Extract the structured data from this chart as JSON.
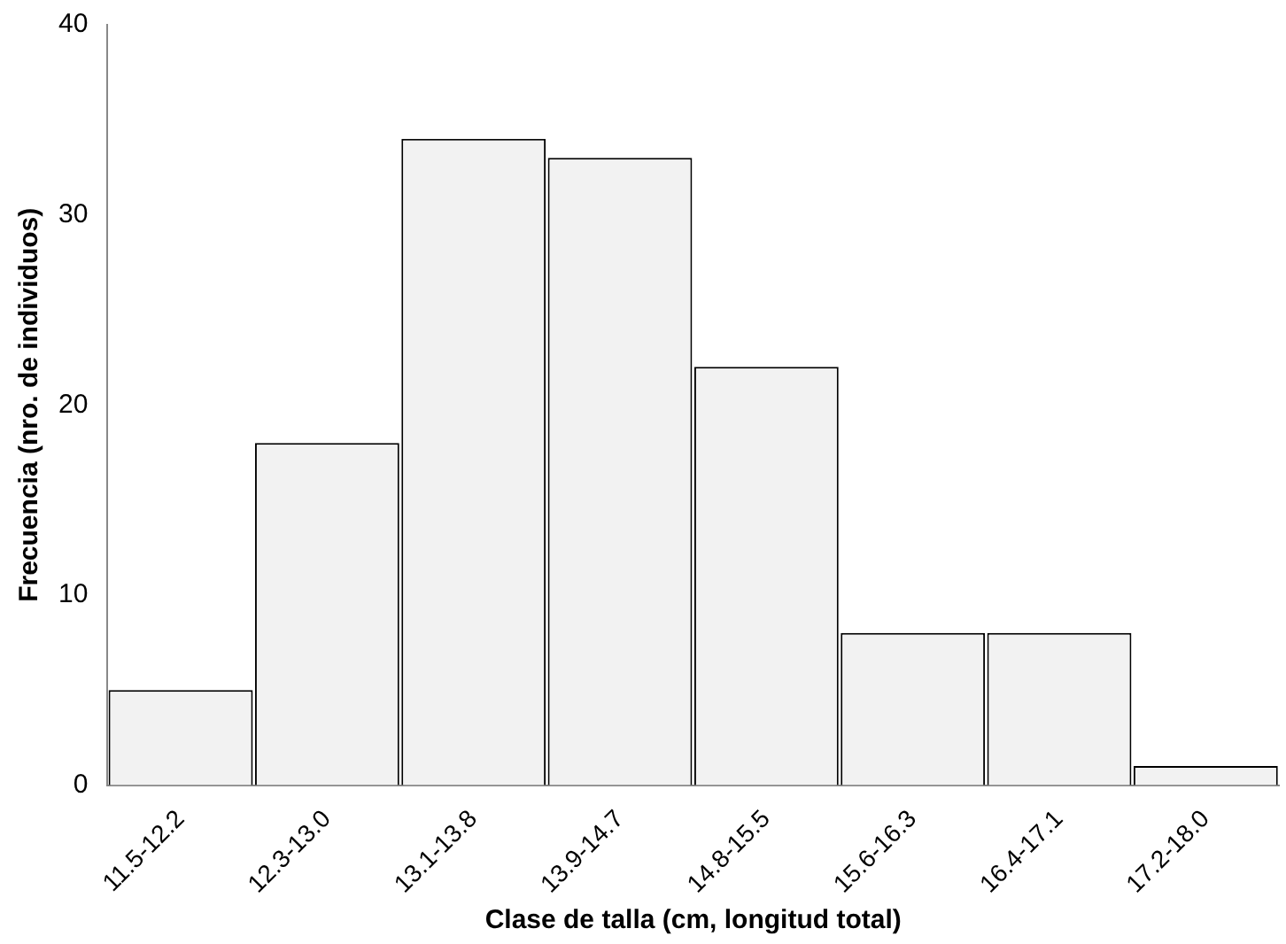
{
  "chart_data": {
    "type": "bar",
    "xlabel": "Clase de talla (cm, longitud total)",
    "ylabel": "Frecuencia (nro. de individuos)",
    "categories": [
      "11.5-12.2",
      "12.3-13.0",
      "13.1-13.8",
      "13.9-14.7",
      "14.8-15.5",
      "15.6-16.3",
      "16.4-17.1",
      "17.2-18.0"
    ],
    "values": [
      5,
      18,
      34,
      33,
      22,
      8,
      8,
      1
    ],
    "color": "#f2f2f2",
    "ylim": [
      0,
      40
    ],
    "yticks": [
      0,
      10,
      20,
      30,
      40
    ],
    "grid": false,
    "legend": false
  }
}
